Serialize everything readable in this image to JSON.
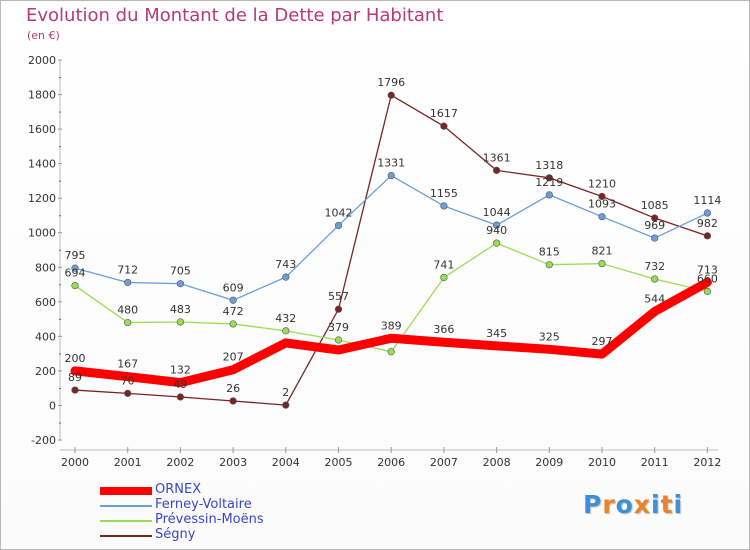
{
  "chart_data": {
    "type": "line",
    "title": "Evolution du Montant de la Dette par Habitant",
    "subtitle": "(en €)",
    "xlabel": "",
    "ylabel": "",
    "x": [
      "2000",
      "2001",
      "2002",
      "2003",
      "2004",
      "2005",
      "2006",
      "2007",
      "2008",
      "2009",
      "2010",
      "2011",
      "2012"
    ],
    "ylim": [
      -200,
      2000
    ],
    "yticks": [
      -200,
      0,
      200,
      400,
      600,
      800,
      1000,
      1200,
      1400,
      1600,
      1800,
      2000
    ],
    "grid": false,
    "legend_position": "bottom-left",
    "series": [
      {
        "name": "ORNEX",
        "color": "#ff0000",
        "values": [
          200,
          167,
          132,
          207,
          362,
          321,
          389,
          366,
          345,
          325,
          297,
          544,
          713
        ]
      },
      {
        "name": "Ferney-Voltaire",
        "color": "#6a9fd8",
        "values": [
          795,
          712,
          705,
          609,
          743,
          1042,
          1331,
          1155,
          1044,
          1219,
          1093,
          969,
          1114
        ]
      },
      {
        "name": "Prévessin-Moëns",
        "color": "#99dd55",
        "values": [
          694,
          480,
          483,
          472,
          432,
          379,
          311,
          741,
          940,
          815,
          821,
          732,
          660
        ]
      },
      {
        "name": "Ségny",
        "color": "#7a2424",
        "values": [
          89,
          70,
          49,
          26,
          2,
          557,
          1796,
          1617,
          1361,
          1318,
          1210,
          1085,
          982
        ]
      }
    ],
    "point_labels": [
      [
        "200",
        "167",
        "132",
        "207",
        "",
        "",
        "389",
        "366",
        "345",
        "325",
        "297",
        "544",
        "713"
      ],
      [
        "795",
        "712",
        "705",
        "609",
        "743",
        "1042",
        "1331",
        "1155",
        "1044",
        "1219",
        "1093",
        "969",
        "1114"
      ],
      [
        "694",
        "480",
        "483",
        "472",
        "432",
        "379",
        "",
        "741",
        "940",
        "815",
        "821",
        "732",
        "660"
      ],
      [
        "89",
        "70",
        "49",
        "26",
        "2",
        "557",
        "1796",
        "1617",
        "1361",
        "1318",
        "1210",
        "1085",
        "982"
      ]
    ]
  },
  "logo": {
    "text": "Proxiti",
    "letters": [
      "P",
      "r",
      "o",
      "x",
      "i",
      "t",
      "i"
    ],
    "colors": [
      "#3d8fd6",
      "#e8842a",
      "#3d8fd6",
      "#e8842a",
      "#3d8fd6",
      "#e8842a",
      "#3d8fd6"
    ]
  }
}
